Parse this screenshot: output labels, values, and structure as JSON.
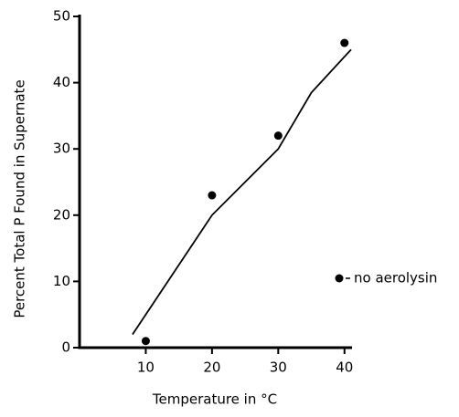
{
  "chart_data": {
    "type": "scatter",
    "xlabel": "Temperature in °C",
    "ylabel": "Percent Total P Found in Supernate",
    "xlim": [
      0,
      41
    ],
    "ylim": [
      0,
      50
    ],
    "xticks": [
      10,
      20,
      30,
      40
    ],
    "yticks": [
      0,
      10,
      20,
      30,
      40,
      50
    ],
    "legend": "right",
    "series": [
      {
        "name": "no aerolysin",
        "color": "#000000",
        "x": [
          10,
          20,
          30,
          40
        ],
        "values": [
          1,
          23,
          32,
          46
        ]
      },
      {
        "type": "line",
        "color": "#000000",
        "x": [
          8,
          20,
          30,
          35,
          41
        ],
        "values": [
          2,
          20,
          30,
          38.5,
          45
        ]
      }
    ]
  }
}
